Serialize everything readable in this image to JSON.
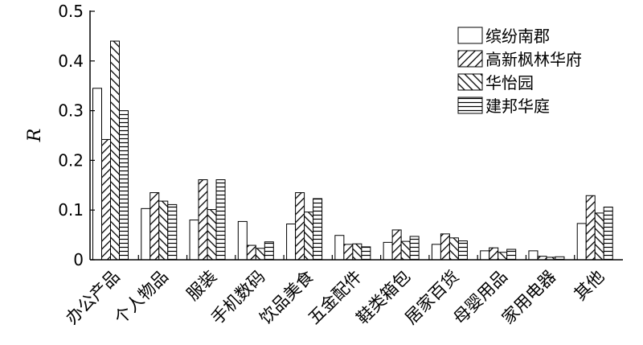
{
  "chart_data": {
    "type": "bar",
    "ylabel": "R",
    "ylim": [
      0,
      0.5
    ],
    "yticks": [
      "0",
      "0.1",
      "0.2",
      "0.3",
      "0.4",
      "0.5"
    ],
    "legend_position": "top-right",
    "categories": [
      "办公产品",
      "个人物品",
      "服装",
      "手机数码",
      "饮品美食",
      "五金配件",
      "鞋类箱包",
      "居家百货",
      "母婴用品",
      "家用电器",
      "其他"
    ],
    "series": [
      {
        "name": "缤纷南郡",
        "pattern": "blank",
        "values": [
          0.345,
          0.103,
          0.08,
          0.077,
          0.072,
          0.049,
          0.035,
          0.031,
          0.018,
          0.018,
          0.073
        ]
      },
      {
        "name": "高新枫林华府",
        "pattern": "diag-up",
        "values": [
          0.242,
          0.135,
          0.161,
          0.029,
          0.135,
          0.031,
          0.06,
          0.052,
          0.024,
          0.007,
          0.129
        ]
      },
      {
        "name": "华怡园",
        "pattern": "diag-down",
        "values": [
          0.44,
          0.118,
          0.101,
          0.023,
          0.096,
          0.032,
          0.037,
          0.044,
          0.015,
          0.005,
          0.094
        ]
      },
      {
        "name": "建邦华庭",
        "pattern": "horizontal",
        "values": [
          0.3,
          0.111,
          0.161,
          0.036,
          0.123,
          0.026,
          0.047,
          0.038,
          0.021,
          0.006,
          0.106
        ]
      }
    ]
  }
}
